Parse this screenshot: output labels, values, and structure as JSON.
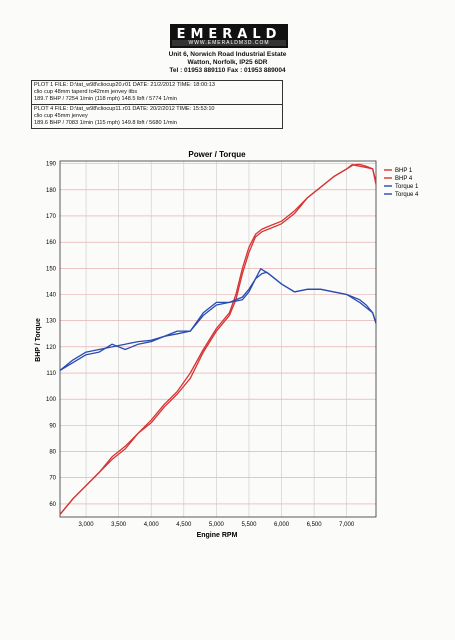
{
  "header": {
    "company": "EMERALD",
    "website": "WWW.EMERALDM3D.COM",
    "address_1": "Unit 6, Norwich Road Industrial Estate",
    "address_2": "Watton, Norfolk, IP25 6DR",
    "contact": "Tel : 01953 889110   Fax : 01953 889004"
  },
  "plots": [
    {
      "line1": "PLOT 1 FILE: D:\\tat_w98\\cliocup20.r01  DATE: 21/2/2012  TIME: 18:00:13",
      "line2": "clio cup 48mm taperd to42mm jenvey itbs",
      "line3": "189.7 BHP / 7254 1/min (118 mph)    148.5 lbft / 5774 1/min"
    },
    {
      "line1": "PLOT 4 FILE: D:\\tat_w98\\cliocup11.r01  DATE: 20/2/2012  TIME: 15:53:10",
      "line2": "clio cup 45mm jenvey",
      "line3": "189.6 BHP / 7083 1/min (115 mph)    149.8 lbft / 5680 1/min"
    }
  ],
  "chart_data": {
    "type": "line",
    "title": "Power / Torque",
    "xlabel": "Engine RPM",
    "ylabel": "BHP / Torque",
    "xlim": [
      2600,
      7450
    ],
    "ylim": [
      55,
      191
    ],
    "yticks": [
      60,
      70,
      80,
      90,
      100,
      110,
      120,
      130,
      140,
      150,
      160,
      170,
      180,
      190
    ],
    "xticks": [
      3000,
      3500,
      4000,
      4500,
      5000,
      5500,
      6000,
      6500,
      7000
    ],
    "xtick_labels": [
      "3,000",
      "3,500",
      "4,000",
      "4,500",
      "5,000",
      "5,500",
      "6,000",
      "6,500",
      "7,000"
    ],
    "grid": true,
    "legend_position": "top-right",
    "colors": {
      "bhp": "#d63434",
      "torque": "#2a4bb0"
    },
    "series": [
      {
        "name": "BHP 1",
        "kind": "bhp",
        "x": [
          2600,
          2800,
          3000,
          3200,
          3400,
          3600,
          3800,
          4000,
          4200,
          4400,
          4600,
          4800,
          5000,
          5200,
          5300,
          5400,
          5500,
          5600,
          5700,
          5800,
          6000,
          6200,
          6400,
          6600,
          6800,
          7000,
          7100,
          7200,
          7300,
          7400,
          7450
        ],
        "y": [
          56,
          62,
          67,
          72,
          77,
          81,
          87,
          92,
          98,
          103,
          110,
          119,
          127,
          133,
          140,
          150,
          158,
          163,
          165,
          166,
          168,
          172,
          177,
          181,
          185,
          188,
          189.5,
          189.7,
          189,
          188,
          182
        ]
      },
      {
        "name": "BHP 4",
        "kind": "bhp",
        "x": [
          2600,
          2800,
          3000,
          3200,
          3400,
          3600,
          3800,
          4000,
          4200,
          4400,
          4600,
          4800,
          5000,
          5200,
          5300,
          5400,
          5500,
          5600,
          5700,
          5800,
          6000,
          6200,
          6400,
          6600,
          6800,
          7000,
          7083,
          7200,
          7300,
          7400,
          7450
        ],
        "y": [
          56,
          62,
          67,
          72,
          78,
          82,
          87,
          91,
          97,
          102,
          108,
          118,
          126,
          132,
          138,
          148,
          156,
          162,
          164,
          165,
          167,
          171,
          177,
          181,
          185,
          188,
          189.6,
          189,
          188.5,
          188,
          183
        ]
      },
      {
        "name": "Torque 1",
        "kind": "torque",
        "x": [
          2600,
          2800,
          3000,
          3200,
          3400,
          3600,
          3800,
          4000,
          4200,
          4400,
          4600,
          4800,
          5000,
          5200,
          5400,
          5500,
          5600,
          5700,
          5774,
          5900,
          6000,
          6200,
          6400,
          6600,
          6800,
          7000,
          7200,
          7300,
          7400,
          7450
        ],
        "y": [
          111,
          114,
          117,
          118,
          121,
          119,
          121,
          122,
          124,
          125,
          126,
          132,
          136,
          137,
          139,
          142,
          146,
          148,
          148.5,
          146,
          144,
          141,
          142,
          142,
          141,
          140,
          138,
          136,
          133,
          129
        ]
      },
      {
        "name": "Torque 4",
        "kind": "torque",
        "x": [
          2600,
          2800,
          3000,
          3200,
          3400,
          3600,
          3800,
          4000,
          4200,
          4400,
          4600,
          4800,
          5000,
          5200,
          5400,
          5500,
          5600,
          5680,
          5800,
          6000,
          6200,
          6400,
          6600,
          6800,
          7000,
          7200,
          7300,
          7400,
          7450
        ],
        "y": [
          111,
          115,
          118,
          119,
          120,
          121,
          122,
          122.5,
          124,
          126,
          126,
          133,
          137,
          137,
          138,
          141,
          146,
          149.8,
          148,
          144,
          141,
          142,
          142,
          141,
          140,
          137,
          135,
          133,
          129
        ]
      }
    ]
  }
}
